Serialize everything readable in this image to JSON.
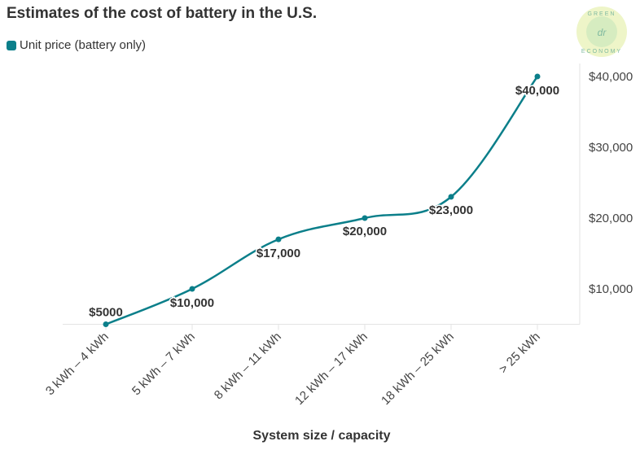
{
  "chart_data": {
    "type": "line",
    "title": "Estimates of the cost of battery in the U.S.",
    "xlabel": "System size / capacity",
    "ylabel": "",
    "categories": [
      "3 kWh – 4 kWh",
      "5 kWh – 7 kWh",
      "8 kWh – 11 kWh",
      "12 kWh – 17 kWh",
      "18 kWh – 25 kWh",
      "> 25 kWh"
    ],
    "series": [
      {
        "name": "Unit price (battery only)",
        "values": [
          5000,
          10000,
          17000,
          20000,
          23000,
          40000
        ],
        "color": "#0b7f8a"
      }
    ],
    "data_labels": [
      "$5000",
      "$10,000",
      "$17,000",
      "$20,000",
      "$23,000",
      "$40,000"
    ],
    "ylim": [
      5000,
      41000
    ],
    "yticks": [
      10000,
      20000,
      30000,
      40000
    ],
    "ytick_labels": [
      "$10,000",
      "$20,000",
      "$30,000",
      "$40,000"
    ],
    "y_axis_position": "right",
    "grid": false,
    "legend_position": "top-left"
  },
  "logo": {
    "text_top": "GREEN",
    "text_bottom": "ECONOMY",
    "monogram": "dr"
  }
}
